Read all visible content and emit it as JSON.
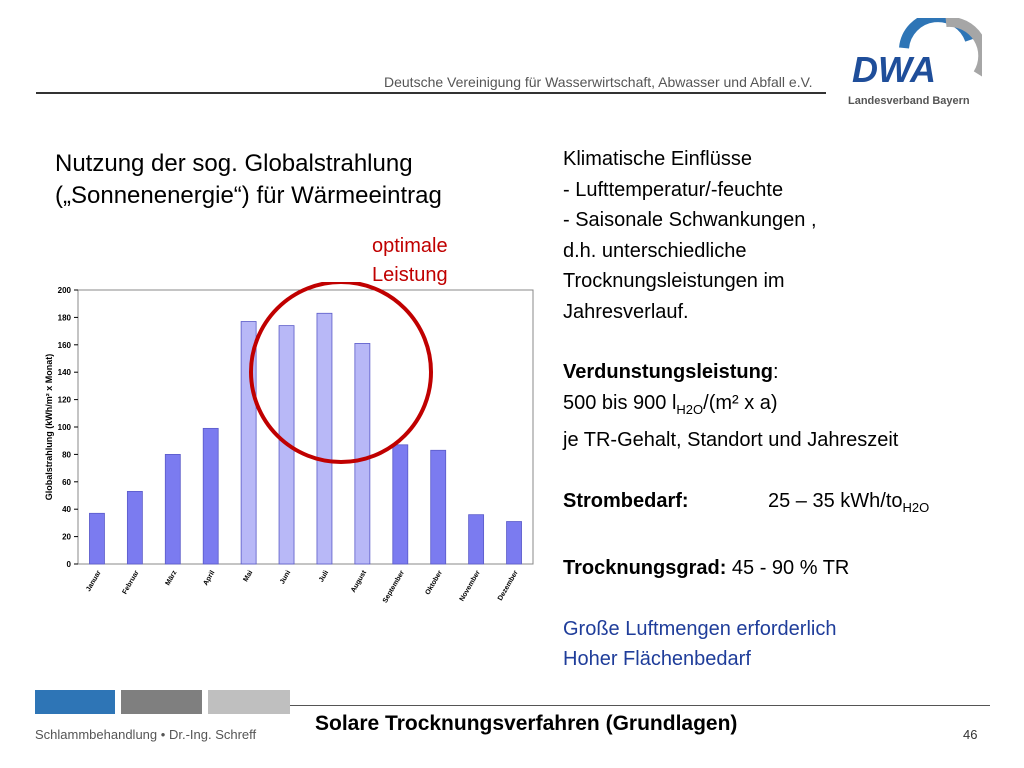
{
  "header": {
    "org_name": "Deutsche Vereinigung für Wasserwirtschaft, Abwasser und Abfall e.V.",
    "logo_text": "DWA",
    "logo_subtext": "Landesverband Bayern"
  },
  "main": {
    "title_line1": "Nutzung der sog. Globalstrahlung",
    "title_line2": "(„Sonnenenergie“) für Wärmeeintrag",
    "optimal_line1": "optimale",
    "optimal_line2": "Leistung"
  },
  "right": {
    "l1": "Klimatische Einflüsse",
    "l2": "- Lufttemperatur/-feuchte",
    "l3": "- Saisonale Schwankungen ,",
    "l4": "d.h. unterschiedliche",
    "l5": "Trocknungsleistungen  im",
    "l6": "Jahresverlauf.",
    "evap_label": "Verdunstungsleistung",
    "evap_colon": ":",
    "evap_value_a": "500 bis 900 l",
    "evap_value_sub": "H2O",
    "evap_value_b": "/(m² x a)",
    "evap_note": "je TR-Gehalt, Standort  und Jahreszeit",
    "power_label": "Strombedarf:",
    "power_value": "25 – 35 kWh/to",
    "power_sub": "H2O",
    "dry_label": "Trocknungsgrad:",
    "dry_value": " 45 - 90 % TR",
    "air": "Große Luftmengen erforderlich",
    "area": "Hoher Flächenbedarf"
  },
  "footer": {
    "left_a": "Schlammbehandlung",
    "left_sep": "•",
    "left_b": "Dr.-Ing. Schreff",
    "title": "Solare Trocknungsverfahren  (Grundlagen)",
    "page": "46"
  },
  "colors": {
    "bar": "#7b7bf0",
    "bar_highlight": "#b8b8f7",
    "circle": "#c00000",
    "accent_blue": "#2e75b6",
    "grey1": "#7f7f7f",
    "grey2": "#bfbfbf",
    "text_blue": "#1f3d9a",
    "dwa_blue": "#1f4e9a"
  },
  "chart_data": {
    "type": "bar",
    "ylabel": "Globalstrahlung (kWh/m² x Monat)",
    "xlabel": "",
    "ylim": [
      0,
      200
    ],
    "yticks": [
      0,
      20,
      40,
      60,
      80,
      100,
      120,
      140,
      160,
      180,
      200
    ],
    "categories": [
      "Januar",
      "Februar",
      "März",
      "April",
      "Mai",
      "Juni",
      "Juli",
      "August",
      "September",
      "Oktober",
      "November",
      "Dezember"
    ],
    "values": [
      37,
      53,
      80,
      99,
      177,
      174,
      183,
      161,
      87,
      83,
      36,
      31
    ],
    "highlighted": [
      "Mai",
      "Juni",
      "Juli",
      "August"
    ],
    "grid": false,
    "legend": "none"
  }
}
